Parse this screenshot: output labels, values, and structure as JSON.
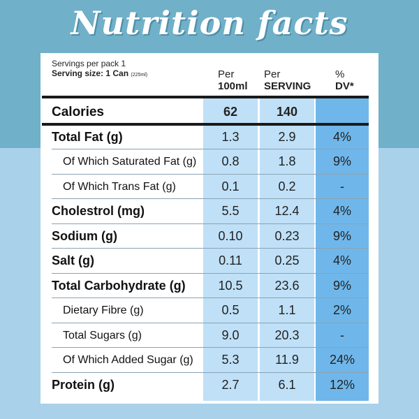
{
  "title": "Nutrition facts",
  "servings_per_pack": "Servings per pack 1",
  "serving_size": "Serving size: 1 Can",
  "serving_size_note": "(225ml)",
  "headers": {
    "per100_line1": "Per",
    "per100_line2": "100ml",
    "serving_line1": "Per",
    "serving_line2": "SERVING",
    "dv_line1": "%",
    "dv_line2": "DV*"
  },
  "rows": [
    {
      "name": "Calories",
      "per100": "62",
      "serving": "140",
      "dv": ""
    },
    {
      "name": "Total Fat (g)",
      "per100": "1.3",
      "serving": "2.9",
      "dv": "4%"
    },
    {
      "name": "Of Which Saturated Fat (g)",
      "per100": "0.8",
      "serving": "1.8",
      "dv": "9%"
    },
    {
      "name": "Of Which Trans Fat (g)",
      "per100": "0.1",
      "serving": "0.2",
      "dv": "-"
    },
    {
      "name": "Cholestrol (mg)",
      "per100": "5.5",
      "serving": "12.4",
      "dv": "4%"
    },
    {
      "name": "Sodium (g)",
      "per100": "0.10",
      "serving": "0.23",
      "dv": "9%"
    },
    {
      "name": "Salt (g)",
      "per100": "0.11",
      "serving": "0.25",
      "dv": "4%"
    },
    {
      "name": "Total Carbohydrate (g)",
      "per100": "10.5",
      "serving": "23.6",
      "dv": "9%"
    },
    {
      "name": "Dietary Fibre (g)",
      "per100": "0.5",
      "serving": "1.1",
      "dv": "2%"
    },
    {
      "name": "Total Sugars (g)",
      "per100": "9.0",
      "serving": "20.3",
      "dv": "-"
    },
    {
      "name": "Of Which Added Sugar (g)",
      "per100": "5.3",
      "serving": "11.9",
      "dv": "24%"
    },
    {
      "name": "Protein (g)",
      "per100": "2.7",
      "serving": "6.1",
      "dv": "12%"
    }
  ],
  "colors": {
    "top_band": "#71b0c9",
    "background": "#a9d1ea",
    "column_light": "#bfe0f7",
    "column_dv": "#6fb7ea"
  }
}
